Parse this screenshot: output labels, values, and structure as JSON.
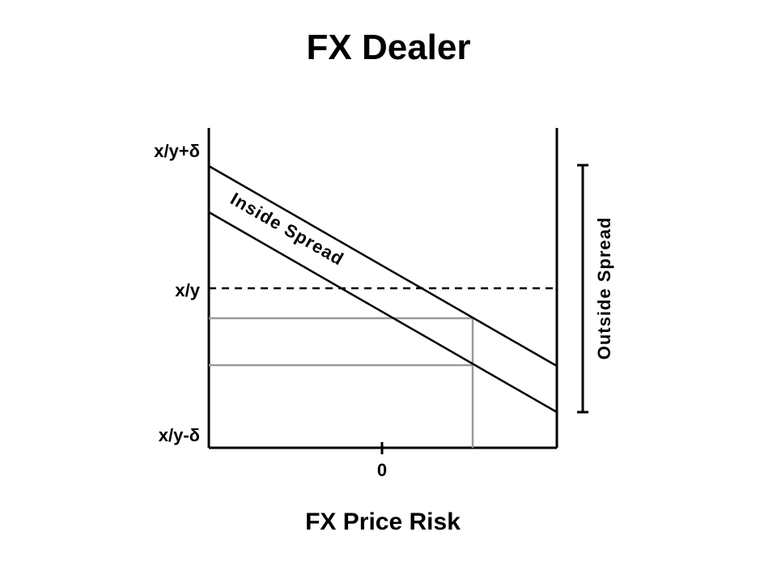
{
  "title": "FX Dealer",
  "x_axis_label": "FX Price Risk",
  "x_tick": "0",
  "y_labels": {
    "top": "x/y+δ",
    "mid": "x/y",
    "bottom": "x/y-δ"
  },
  "inside_spread_label": "Inside Spread",
  "outside_spread_label": "Outside Spread",
  "colors": {
    "lines": "#000000",
    "projection_lines": "#999999"
  }
}
